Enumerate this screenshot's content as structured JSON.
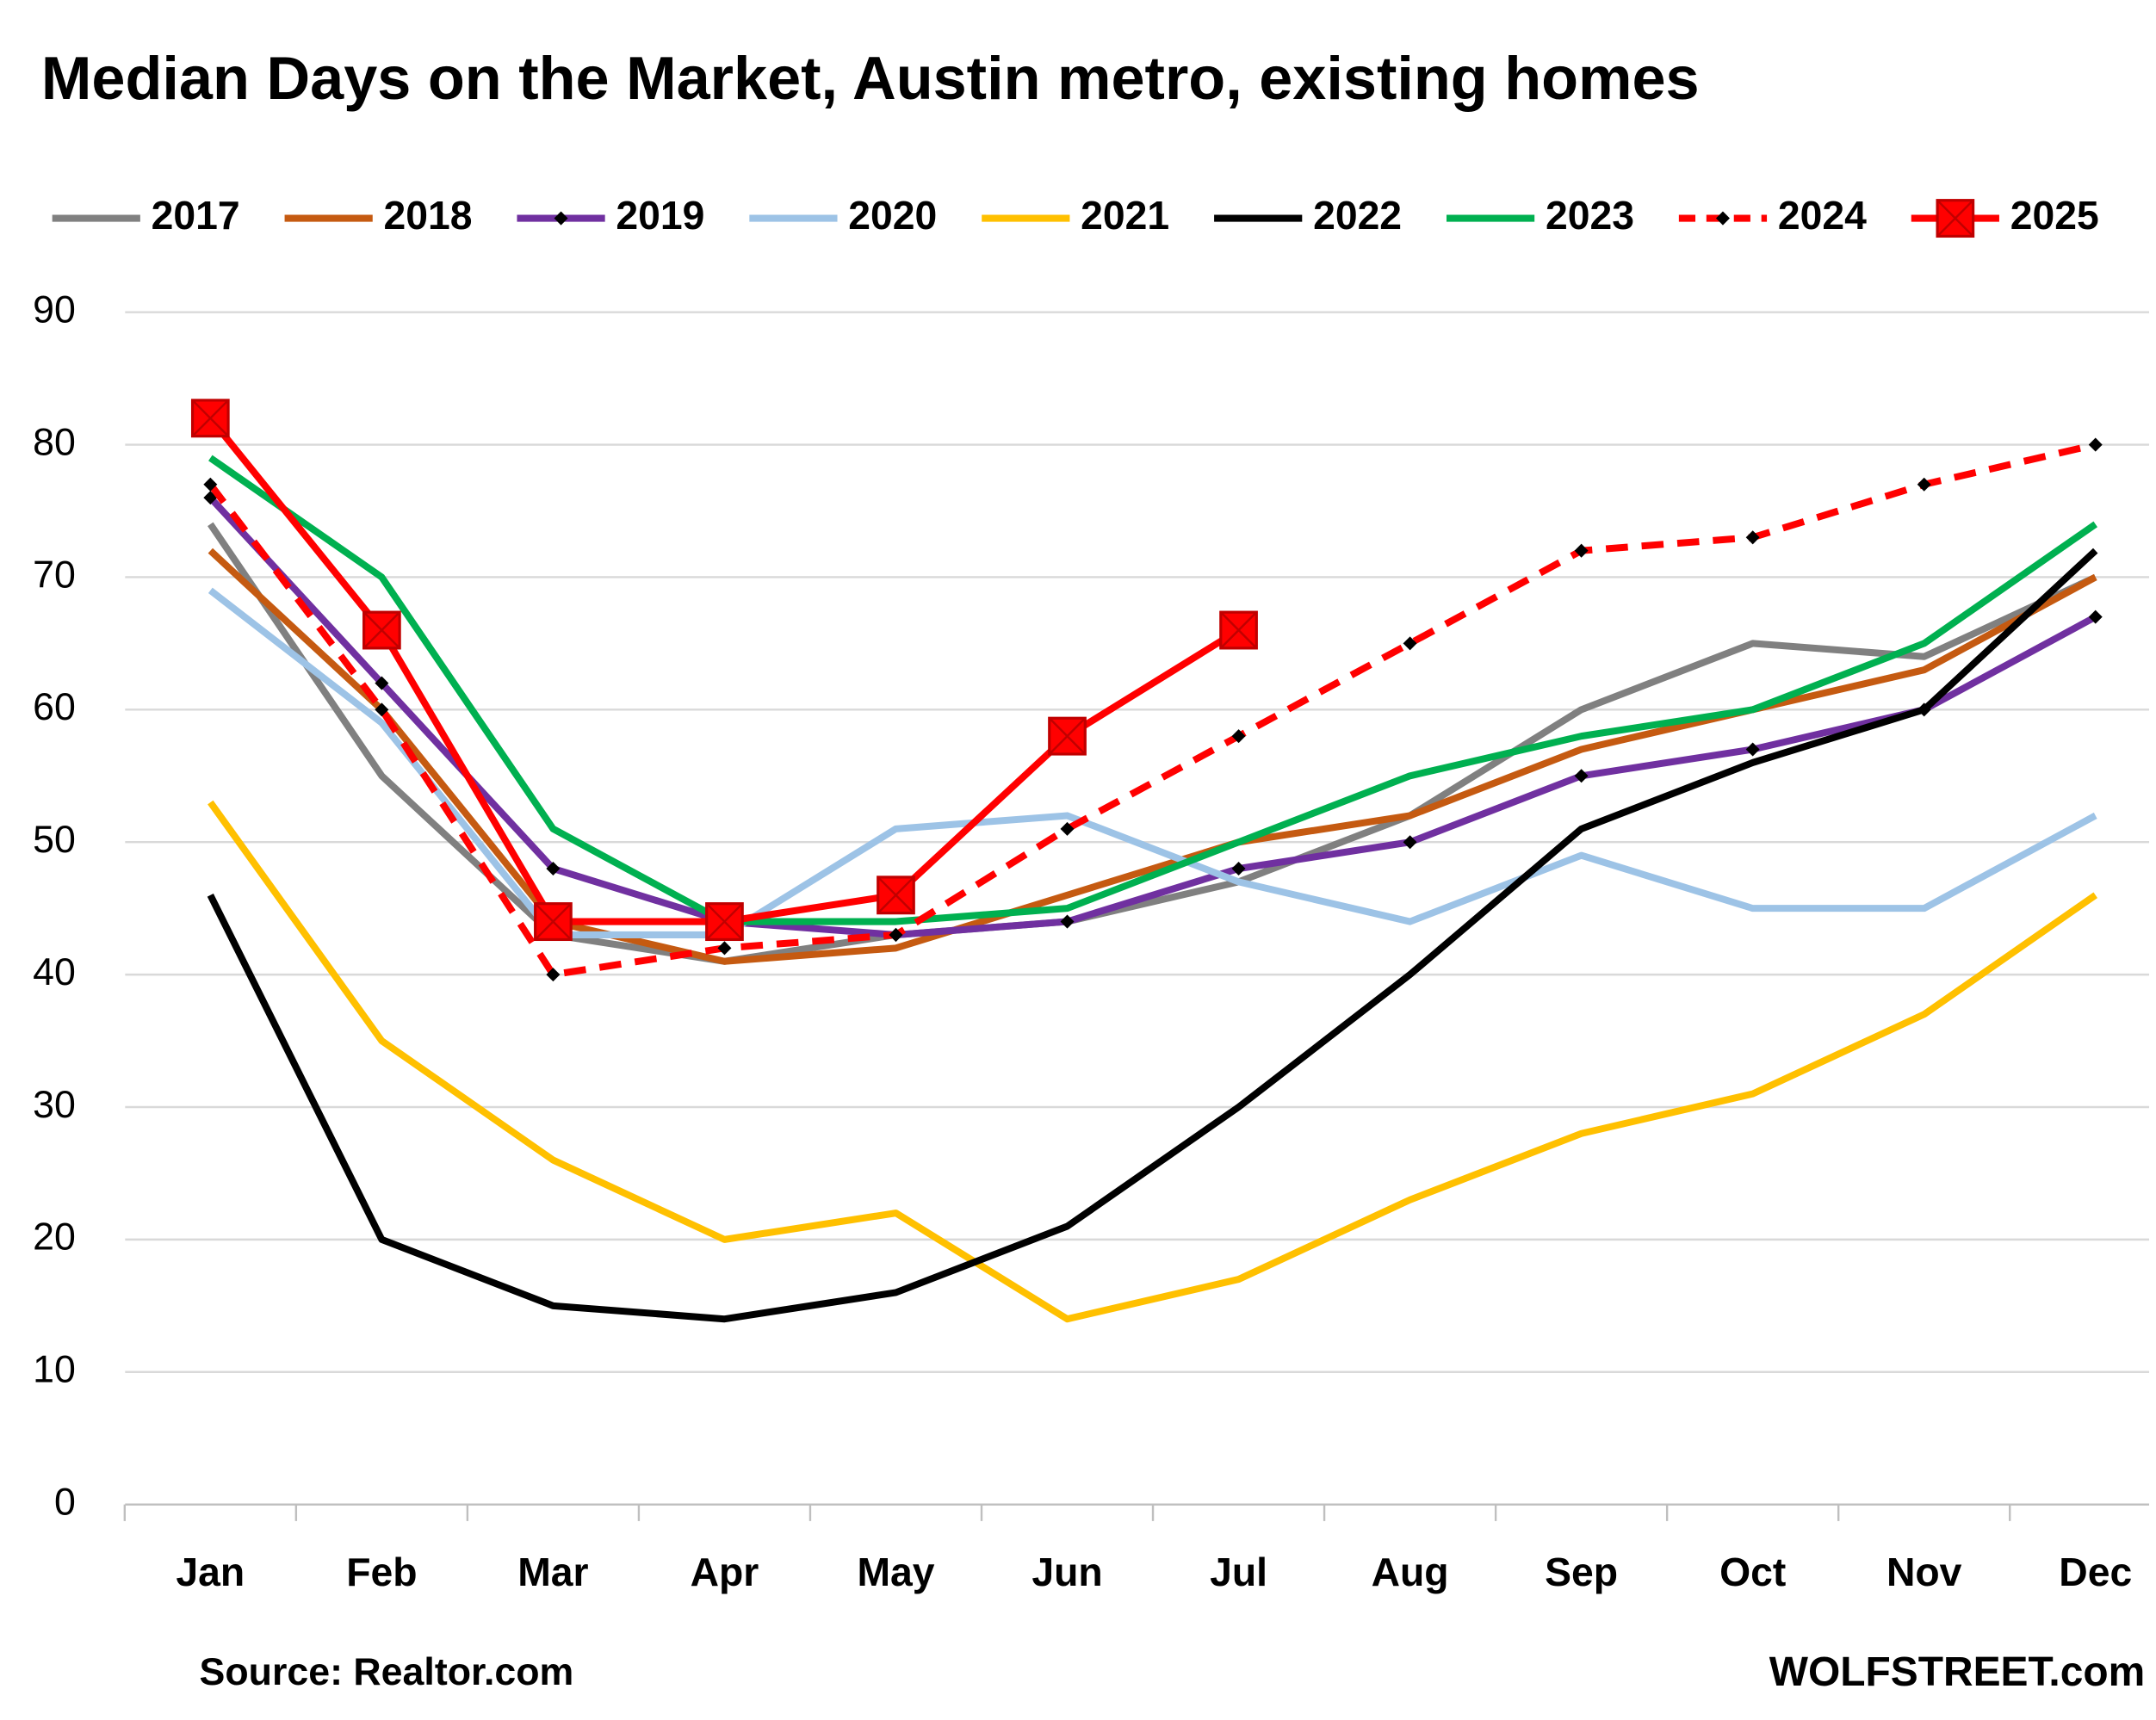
{
  "chart_data": {
    "type": "line",
    "title": "Median Days on the Market, Austin metro, existing homes",
    "categories": [
      "Jan",
      "Feb",
      "Mar",
      "Apr",
      "May",
      "Jun",
      "Jul",
      "Aug",
      "Sep",
      "Oct",
      "Nov",
      "Dec"
    ],
    "ylim": [
      0,
      90
    ],
    "yticks": [
      0,
      10,
      20,
      30,
      40,
      50,
      60,
      70,
      80,
      90
    ],
    "grid": true,
    "legend": "top",
    "series": [
      {
        "name": "2017",
        "color": "#808080",
        "values": [
          74,
          55,
          43,
          41,
          43,
          44,
          47,
          52,
          60,
          65,
          64,
          70
        ]
      },
      {
        "name": "2018",
        "color": "#c55a11",
        "values": [
          72,
          60,
          44,
          41,
          42,
          46,
          50,
          52,
          57,
          60,
          63,
          70
        ]
      },
      {
        "name": "2019",
        "color": "#7030a0",
        "marker": "diamond",
        "values": [
          76,
          62,
          48,
          44,
          43,
          44,
          48,
          50,
          55,
          57,
          60,
          67
        ]
      },
      {
        "name": "2020",
        "color": "#9dc3e6",
        "values": [
          69,
          59,
          43,
          43,
          51,
          52,
          47,
          44,
          49,
          45,
          45,
          52
        ]
      },
      {
        "name": "2021",
        "color": "#ffc000",
        "values": [
          53,
          35,
          26,
          20,
          22,
          14,
          17,
          23,
          28,
          31,
          37,
          46
        ]
      },
      {
        "name": "2022",
        "color": "#000000",
        "values": [
          46,
          20,
          15,
          14,
          16,
          21,
          30,
          40,
          51,
          56,
          60,
          72
        ]
      },
      {
        "name": "2023",
        "color": "#00b050",
        "values": [
          79,
          70,
          51,
          44,
          44,
          45,
          50,
          55,
          58,
          60,
          65,
          74
        ]
      },
      {
        "name": "2024",
        "color": "#ff0000",
        "dashed": true,
        "marker": "diamond",
        "values": [
          77,
          60,
          40,
          42,
          43,
          51,
          58,
          65,
          72,
          73,
          77,
          80
        ]
      },
      {
        "name": "2025",
        "color": "#ff0000",
        "marker": "square",
        "values": [
          82,
          66,
          44,
          44,
          46,
          58,
          66,
          null,
          null,
          null,
          null,
          null
        ]
      }
    ],
    "source": "Source: Realtor.com",
    "credit": "WOLFSTREET.com"
  }
}
